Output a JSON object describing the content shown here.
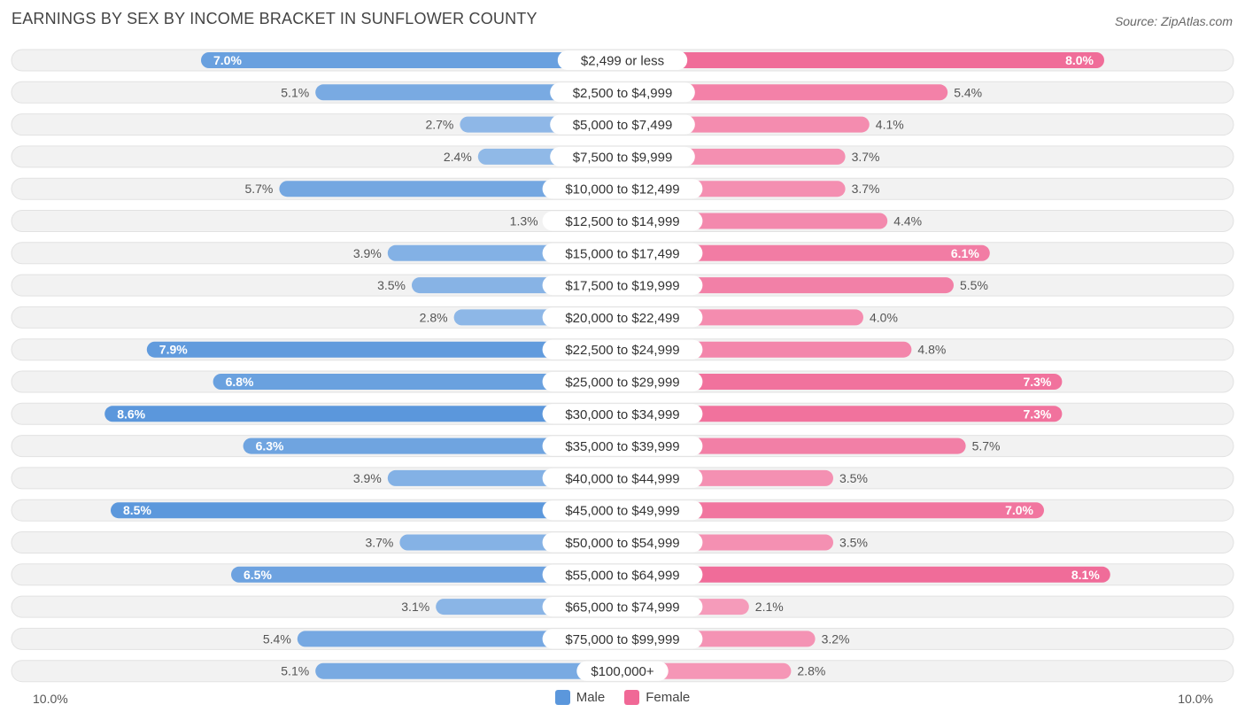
{
  "header": {
    "title": "EARNINGS BY SEX BY INCOME BRACKET IN SUNFLOWER COUNTY",
    "source": "Source: ZipAtlas.com"
  },
  "axis": {
    "left_label": "10.0%",
    "right_label": "10.0%"
  },
  "legend": {
    "male": "Male",
    "female": "Female"
  },
  "colors": {
    "male": "#5b97dc",
    "female": "#f06896",
    "row_bg": "#f2f2f2",
    "row_border": "#e2e2e2"
  },
  "chart_data": {
    "type": "bar",
    "title": "EARNINGS BY SEX BY INCOME BRACKET IN SUNFLOWER COUNTY",
    "xlim": [
      -10,
      10
    ],
    "categories": [
      "$2,499 or less",
      "$2,500 to $4,999",
      "$5,000 to $7,499",
      "$7,500 to $9,999",
      "$10,000 to $12,499",
      "$12,500 to $14,999",
      "$15,000 to $17,499",
      "$17,500 to $19,999",
      "$20,000 to $22,499",
      "$22,500 to $24,999",
      "$25,000 to $29,999",
      "$30,000 to $34,999",
      "$35,000 to $39,999",
      "$40,000 to $44,999",
      "$45,000 to $49,999",
      "$50,000 to $54,999",
      "$55,000 to $64,999",
      "$65,000 to $74,999",
      "$75,000 to $99,999",
      "$100,000+"
    ],
    "series": [
      {
        "name": "Male",
        "values": [
          7.0,
          5.1,
          2.7,
          2.4,
          5.7,
          1.3,
          3.9,
          3.5,
          2.8,
          7.9,
          6.8,
          8.6,
          6.3,
          3.9,
          8.5,
          3.7,
          6.5,
          3.1,
          5.4,
          5.1
        ],
        "labels": [
          "7.0%",
          "5.1%",
          "2.7%",
          "2.4%",
          "5.7%",
          "1.3%",
          "3.9%",
          "3.5%",
          "2.8%",
          "7.9%",
          "6.8%",
          "8.6%",
          "6.3%",
          "3.9%",
          "8.5%",
          "3.7%",
          "6.5%",
          "3.1%",
          "5.4%",
          "5.1%"
        ]
      },
      {
        "name": "Female",
        "values": [
          8.0,
          5.4,
          4.1,
          3.7,
          3.7,
          4.4,
          6.1,
          5.5,
          4.0,
          4.8,
          7.3,
          7.3,
          5.7,
          3.5,
          7.0,
          3.5,
          8.1,
          2.1,
          3.2,
          2.8
        ],
        "labels": [
          "8.0%",
          "5.4%",
          "4.1%",
          "3.7%",
          "3.7%",
          "4.4%",
          "6.1%",
          "5.5%",
          "4.0%",
          "4.8%",
          "7.3%",
          "7.3%",
          "5.7%",
          "3.5%",
          "7.0%",
          "3.5%",
          "8.1%",
          "2.1%",
          "3.2%",
          "2.8%"
        ]
      }
    ]
  }
}
